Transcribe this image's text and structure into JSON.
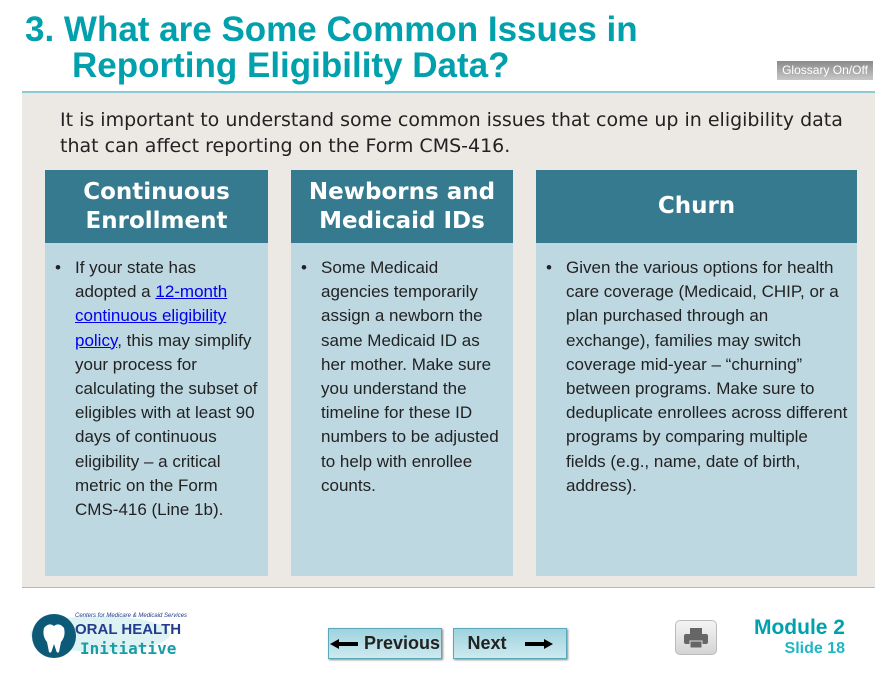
{
  "title": {
    "line1": "3. What are Some Common Issues in",
    "line2": "Reporting Eligibility Data?"
  },
  "glossary_button": "Glossary On/Off",
  "intro": "It is important to understand some common issues that come up in eligibility data that can affect reporting on the Form CMS-416.",
  "columns": [
    {
      "heading": "Continuous Enrollment",
      "text_before": "If your state has adopted a ",
      "link": "12-month continuous eligibility policy",
      "text_after": ", this may simplify your process for calculating the subset of eligibles with at least 90 days of continuous eligibility – a critical metric on the Form CMS-416 (Line 1b)."
    },
    {
      "heading": "Newborns and Medicaid IDs",
      "text": "Some Medicaid agencies temporarily assign a newborn the same Medicaid ID as her mother. Make sure you understand the timeline for these ID numbers to be adjusted to help with enrollee counts."
    },
    {
      "heading": "Churn",
      "text": "Given the various options for health care coverage (Medicaid, CHIP, or a plan purchased through an exchange), families may switch coverage mid-year – “churning” between programs. Make sure to deduplicate enrollees across different programs by comparing multiple fields (e.g., name, date of birth, address)."
    }
  ],
  "logo": {
    "top": "Centers for Medicare & Medicaid Services",
    "line1": "ORAL HEALTH",
    "line2": "Initiative"
  },
  "nav": {
    "previous": "Previous",
    "next": "Next"
  },
  "module": "Module 2",
  "slide": "Slide 18",
  "colors": {
    "title": "#00a0ad",
    "header": "#357a8e",
    "column_bg": "#bed8e2",
    "panel_bg": "#ece9e5"
  }
}
